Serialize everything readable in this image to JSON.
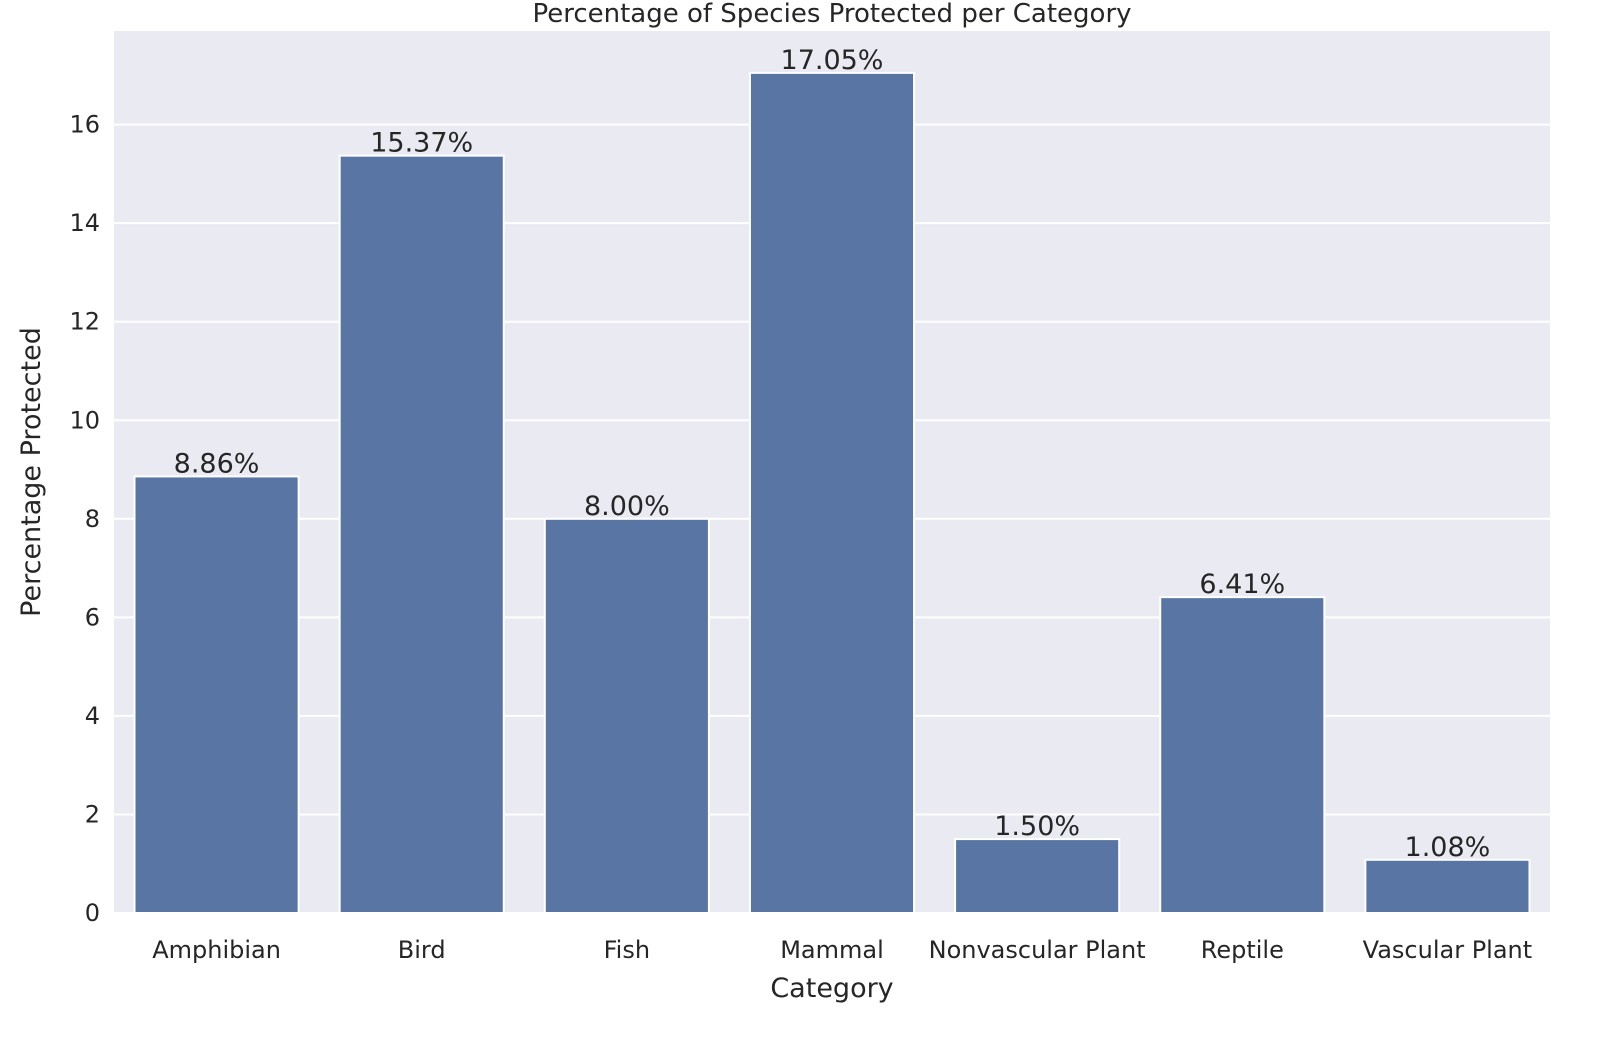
{
  "chart_data": {
    "type": "bar",
    "title": "Percentage of Species Protected per Category",
    "xlabel": "Category",
    "ylabel": "Percentage Protected",
    "categories": [
      "Amphibian",
      "Bird",
      "Fish",
      "Mammal",
      "Nonvascular Plant",
      "Reptile",
      "Vascular Plant"
    ],
    "values": [
      8.86,
      15.37,
      8.0,
      17.05,
      1.5,
      6.41,
      1.08
    ],
    "value_labels": [
      "8.86%",
      "15.37%",
      "8.00%",
      "17.05%",
      "1.50%",
      "6.41%",
      "1.08%"
    ],
    "yticks": [
      0,
      2,
      4,
      6,
      8,
      10,
      12,
      14,
      16
    ],
    "ylim": [
      0,
      17.9
    ],
    "grid": true,
    "legend": "none",
    "colors": {
      "bar": "#5975a4",
      "plot_background": "#eaeaf2",
      "grid": "#ffffff",
      "text": "#262626"
    }
  }
}
